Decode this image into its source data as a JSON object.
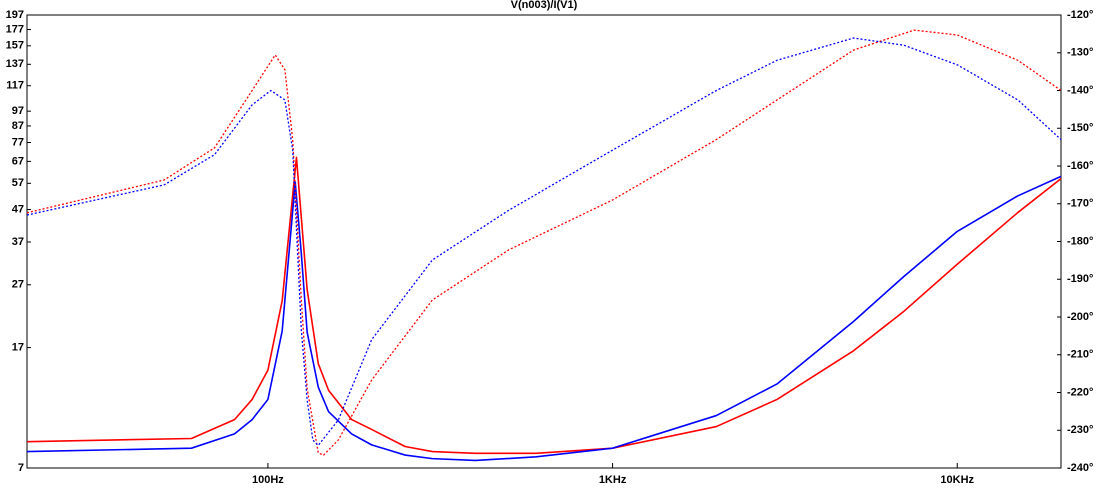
{
  "chart_data": {
    "type": "line",
    "title": "V(n003)/I(V1)",
    "xscale": "log",
    "yscale": "log",
    "xlim": [
      20,
      20000
    ],
    "xticks": [
      {
        "value": 100,
        "label": "100Hz"
      },
      {
        "value": 1000,
        "label": "1KHz"
      },
      {
        "value": 10000,
        "label": "10KHz"
      }
    ],
    "ylim": [
      7,
      197
    ],
    "yticks": [
      7,
      17,
      27,
      37,
      47,
      57,
      67,
      77,
      87,
      97,
      117,
      137,
      157,
      177,
      197
    ],
    "y2lim": [
      -240,
      -120
    ],
    "y2ticks": [
      {
        "value": -240,
        "label": "-240°"
      },
      {
        "value": -230,
        "label": "-230°"
      },
      {
        "value": -220,
        "label": "-220°"
      },
      {
        "value": -210,
        "label": "-210°"
      },
      {
        "value": -200,
        "label": "-200°"
      },
      {
        "value": -190,
        "label": "-190°"
      },
      {
        "value": -180,
        "label": "-180°"
      },
      {
        "value": -170,
        "label": "-170°"
      },
      {
        "value": -160,
        "label": "-160°"
      },
      {
        "value": -150,
        "label": "-150°"
      },
      {
        "value": -140,
        "label": "-140°"
      },
      {
        "value": -130,
        "label": "-130°"
      },
      {
        "value": -120,
        "label": "-120°"
      }
    ],
    "grid": false,
    "series": [
      {
        "color": "#ff0000",
        "style": "solid",
        "x": [
          20,
          60,
          80,
          90,
          100,
          110,
          121,
          130,
          140,
          150,
          175,
          200,
          250,
          300,
          400,
          600,
          1000,
          2000,
          3000,
          5000,
          7000,
          10000,
          15000,
          20000
        ],
        "values": [
          8.5,
          8.7,
          10.0,
          11.6,
          14.4,
          24,
          69,
          26,
          15.1,
          12.4,
          10.0,
          9.3,
          8.2,
          7.9,
          7.8,
          7.8,
          8.1,
          9.5,
          11.6,
          16.6,
          22.2,
          31.4,
          46,
          59
        ]
      },
      {
        "color": "#0000ff",
        "style": "solid",
        "x": [
          20,
          60,
          80,
          90,
          100,
          110,
          120,
          125,
          130,
          140,
          150,
          175,
          200,
          250,
          300,
          400,
          600,
          1000,
          2000,
          3000,
          5000,
          7000,
          10000,
          15000,
          20000
        ],
        "values": [
          7.9,
          8.1,
          9.0,
          10.0,
          11.6,
          19.2,
          57.5,
          34,
          19,
          12.7,
          10.6,
          9.0,
          8.3,
          7.7,
          7.5,
          7.4,
          7.6,
          8.1,
          10.3,
          13.0,
          20.6,
          28.7,
          40,
          52,
          60
        ]
      },
      {
        "color": "#ff0000",
        "style": "dotted",
        "axis": "y2",
        "x": [
          20,
          50,
          70,
          90,
          105,
          112,
          118,
          125,
          130,
          140,
          145,
          160,
          200,
          300,
          500,
          1000,
          2000,
          3000,
          5000,
          7500,
          10000,
          15000,
          20000
        ],
        "values": [
          -172.4,
          -163.7,
          -155.2,
          -140,
          -130.6,
          -134.5,
          -153,
          -195.5,
          -219,
          -236,
          -236.6,
          -232.6,
          -216.7,
          -195.5,
          -182.2,
          -169,
          -153,
          -142.5,
          -129.3,
          -124,
          -125.3,
          -132,
          -140
        ]
      },
      {
        "color": "#0000ff",
        "style": "dotted",
        "axis": "y2",
        "x": [
          20,
          50,
          70,
          90,
          102,
          112,
          118,
          125,
          130,
          135,
          140,
          160,
          200,
          300,
          500,
          1000,
          2000,
          3000,
          5000,
          7000,
          10000,
          15000,
          20000
        ],
        "values": [
          -173,
          -165,
          -157,
          -143.8,
          -140,
          -142.5,
          -155.8,
          -203.4,
          -222,
          -232.6,
          -234,
          -227.3,
          -206,
          -184.9,
          -171.7,
          -155.8,
          -140,
          -132,
          -126.1,
          -128,
          -133.2,
          -142.5,
          -153
        ]
      }
    ]
  }
}
